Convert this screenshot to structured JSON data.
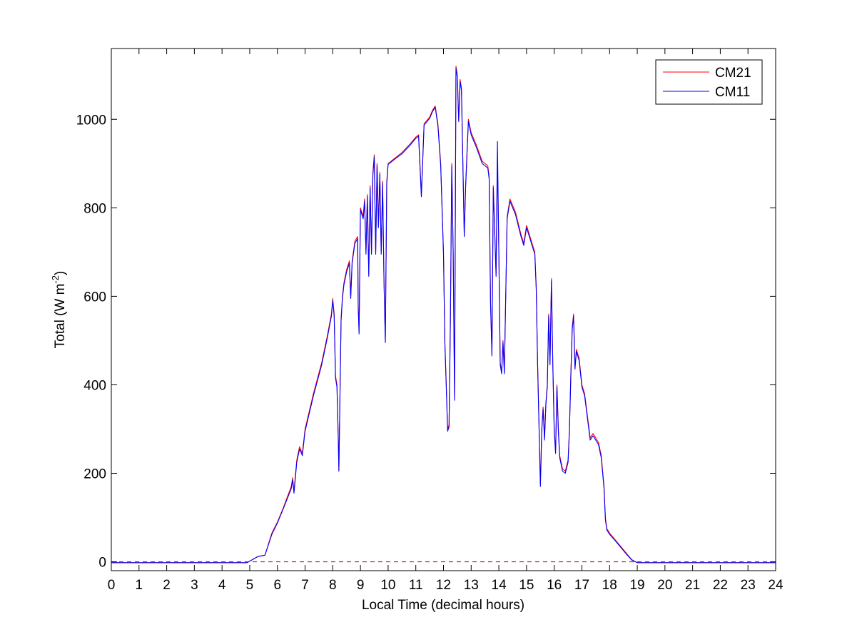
{
  "chart_data": {
    "type": "line",
    "xlabel": "Local Time (decimal hours)",
    "ylabel_main": "Total (W m",
    "ylabel_exponent": "-2",
    "ylabel_close": ")",
    "xlim": [
      0,
      24
    ],
    "ylim": [
      -20,
      1160
    ],
    "xticks": [
      0,
      1,
      2,
      3,
      4,
      5,
      6,
      7,
      8,
      9,
      10,
      11,
      12,
      13,
      14,
      15,
      16,
      17,
      18,
      19,
      20,
      21,
      22,
      23,
      24
    ],
    "yticks": [
      0,
      200,
      400,
      600,
      800,
      1000
    ],
    "xtick_labels": [
      "0",
      "1",
      "2",
      "3",
      "4",
      "5",
      "6",
      "7",
      "8",
      "9",
      "10",
      "11",
      "12",
      "13",
      "14",
      "15",
      "16",
      "17",
      "18",
      "19",
      "20",
      "21",
      "22",
      "23",
      "24"
    ],
    "ytick_labels": [
      "0",
      "200",
      "400",
      "600",
      "800",
      "1000"
    ],
    "grid": false,
    "legend_position": "top-right",
    "reference_line": {
      "y": 0,
      "style": "dashed",
      "color": "#a00000"
    },
    "series": [
      {
        "name": "CM21",
        "color": "#ff0000",
        "points": [
          [
            0,
            -2
          ],
          [
            4.9,
            -2
          ],
          [
            5.1,
            5
          ],
          [
            5.3,
            12
          ],
          [
            5.55,
            15
          ],
          [
            5.8,
            65
          ],
          [
            6.0,
            90
          ],
          [
            6.2,
            120
          ],
          [
            6.5,
            170
          ],
          [
            6.55,
            190
          ],
          [
            6.6,
            160
          ],
          [
            6.7,
            230
          ],
          [
            6.8,
            260
          ],
          [
            6.9,
            245
          ],
          [
            7.0,
            300
          ],
          [
            7.3,
            380
          ],
          [
            7.6,
            450
          ],
          [
            7.8,
            510
          ],
          [
            7.95,
            560
          ],
          [
            8.0,
            595
          ],
          [
            8.05,
            560
          ],
          [
            8.1,
            420
          ],
          [
            8.15,
            400
          ],
          [
            8.2,
            280
          ],
          [
            8.22,
            205
          ],
          [
            8.25,
            330
          ],
          [
            8.3,
            550
          ],
          [
            8.35,
            600
          ],
          [
            8.4,
            630
          ],
          [
            8.5,
            660
          ],
          [
            8.6,
            680
          ],
          [
            8.65,
            600
          ],
          [
            8.7,
            680
          ],
          [
            8.8,
            725
          ],
          [
            8.9,
            735
          ],
          [
            8.92,
            580
          ],
          [
            8.95,
            520
          ],
          [
            9.0,
            800
          ],
          [
            9.1,
            780
          ],
          [
            9.15,
            820
          ],
          [
            9.2,
            700
          ],
          [
            9.25,
            830
          ],
          [
            9.3,
            650
          ],
          [
            9.35,
            850
          ],
          [
            9.4,
            700
          ],
          [
            9.45,
            880
          ],
          [
            9.5,
            920
          ],
          [
            9.55,
            700
          ],
          [
            9.6,
            900
          ],
          [
            9.65,
            760
          ],
          [
            9.7,
            880
          ],
          [
            9.75,
            700
          ],
          [
            9.8,
            860
          ],
          [
            9.85,
            640
          ],
          [
            9.9,
            500
          ],
          [
            9.95,
            860
          ],
          [
            10.0,
            900
          ],
          [
            10.2,
            910
          ],
          [
            10.5,
            925
          ],
          [
            10.8,
            945
          ],
          [
            11.0,
            960
          ],
          [
            11.1,
            965
          ],
          [
            11.2,
            830
          ],
          [
            11.3,
            990
          ],
          [
            11.5,
            1005
          ],
          [
            11.6,
            1020
          ],
          [
            11.7,
            1030
          ],
          [
            11.8,
            990
          ],
          [
            11.9,
            900
          ],
          [
            12.0,
            700
          ],
          [
            12.05,
            500
          ],
          [
            12.1,
            400
          ],
          [
            12.15,
            300
          ],
          [
            12.2,
            310
          ],
          [
            12.25,
            550
          ],
          [
            12.3,
            900
          ],
          [
            12.35,
            700
          ],
          [
            12.4,
            370
          ],
          [
            12.45,
            1120
          ],
          [
            12.5,
            1100
          ],
          [
            12.55,
            1000
          ],
          [
            12.6,
            1090
          ],
          [
            12.65,
            1070
          ],
          [
            12.7,
            900
          ],
          [
            12.75,
            740
          ],
          [
            12.8,
            850
          ],
          [
            12.9,
            1000
          ],
          [
            13.0,
            970
          ],
          [
            13.2,
            940
          ],
          [
            13.4,
            905
          ],
          [
            13.6,
            895
          ],
          [
            13.65,
            870
          ],
          [
            13.7,
            590
          ],
          [
            13.75,
            470
          ],
          [
            13.8,
            850
          ],
          [
            13.9,
            650
          ],
          [
            13.95,
            900
          ],
          [
            14.0,
            700
          ],
          [
            14.05,
            450
          ],
          [
            14.1,
            430
          ],
          [
            14.15,
            500
          ],
          [
            14.2,
            430
          ],
          [
            14.3,
            780
          ],
          [
            14.4,
            820
          ],
          [
            14.6,
            790
          ],
          [
            14.8,
            740
          ],
          [
            14.9,
            720
          ],
          [
            15.0,
            760
          ],
          [
            15.1,
            740
          ],
          [
            15.2,
            720
          ],
          [
            15.3,
            700
          ],
          [
            15.35,
            620
          ],
          [
            15.4,
            450
          ],
          [
            15.5,
            175
          ],
          [
            15.55,
            300
          ],
          [
            15.6,
            350
          ],
          [
            15.65,
            280
          ],
          [
            15.7,
            360
          ],
          [
            15.75,
            400
          ],
          [
            15.8,
            560
          ],
          [
            15.85,
            450
          ],
          [
            15.9,
            640
          ],
          [
            15.95,
            450
          ],
          [
            16.0,
            300
          ],
          [
            16.05,
            250
          ],
          [
            16.1,
            400
          ],
          [
            16.15,
            300
          ],
          [
            16.2,
            240
          ],
          [
            16.3,
            210
          ],
          [
            16.4,
            205
          ],
          [
            16.5,
            230
          ],
          [
            16.55,
            300
          ],
          [
            16.6,
            420
          ],
          [
            16.65,
            530
          ],
          [
            16.7,
            560
          ],
          [
            16.75,
            440
          ],
          [
            16.8,
            480
          ],
          [
            16.9,
            460
          ],
          [
            17.0,
            400
          ],
          [
            17.1,
            380
          ],
          [
            17.2,
            330
          ],
          [
            17.3,
            280
          ],
          [
            17.4,
            290
          ],
          [
            17.5,
            280
          ],
          [
            17.6,
            270
          ],
          [
            17.7,
            240
          ],
          [
            17.8,
            170
          ],
          [
            17.85,
            100
          ],
          [
            17.9,
            75
          ],
          [
            18.0,
            65
          ],
          [
            18.2,
            50
          ],
          [
            18.4,
            35
          ],
          [
            18.6,
            20
          ],
          [
            18.8,
            5
          ],
          [
            19.0,
            -2
          ],
          [
            24.0,
            -2
          ]
        ]
      },
      {
        "name": "CM11",
        "color": "#0000ff",
        "points": [
          [
            0,
            -2
          ],
          [
            4.9,
            -2
          ],
          [
            5.1,
            5
          ],
          [
            5.3,
            12
          ],
          [
            5.55,
            15
          ],
          [
            5.8,
            62
          ],
          [
            6.0,
            88
          ],
          [
            6.2,
            118
          ],
          [
            6.5,
            165
          ],
          [
            6.55,
            185
          ],
          [
            6.6,
            155
          ],
          [
            6.7,
            225
          ],
          [
            6.8,
            255
          ],
          [
            6.9,
            240
          ],
          [
            7.0,
            295
          ],
          [
            7.3,
            375
          ],
          [
            7.6,
            445
          ],
          [
            7.8,
            505
          ],
          [
            7.95,
            555
          ],
          [
            8.0,
            590
          ],
          [
            8.05,
            555
          ],
          [
            8.1,
            415
          ],
          [
            8.15,
            395
          ],
          [
            8.2,
            275
          ],
          [
            8.22,
            205
          ],
          [
            8.25,
            325
          ],
          [
            8.3,
            545
          ],
          [
            8.35,
            595
          ],
          [
            8.4,
            625
          ],
          [
            8.5,
            655
          ],
          [
            8.6,
            675
          ],
          [
            8.65,
            595
          ],
          [
            8.7,
            675
          ],
          [
            8.8,
            720
          ],
          [
            8.9,
            730
          ],
          [
            8.92,
            575
          ],
          [
            8.95,
            515
          ],
          [
            9.0,
            795
          ],
          [
            9.1,
            775
          ],
          [
            9.15,
            815
          ],
          [
            9.2,
            695
          ],
          [
            9.25,
            825
          ],
          [
            9.3,
            645
          ],
          [
            9.35,
            845
          ],
          [
            9.4,
            695
          ],
          [
            9.45,
            875
          ],
          [
            9.5,
            915
          ],
          [
            9.55,
            695
          ],
          [
            9.6,
            895
          ],
          [
            9.65,
            755
          ],
          [
            9.7,
            875
          ],
          [
            9.75,
            695
          ],
          [
            9.8,
            855
          ],
          [
            9.85,
            635
          ],
          [
            9.9,
            495
          ],
          [
            9.95,
            855
          ],
          [
            10.0,
            898
          ],
          [
            10.2,
            908
          ],
          [
            10.5,
            922
          ],
          [
            10.8,
            942
          ],
          [
            11.0,
            957
          ],
          [
            11.1,
            962
          ],
          [
            11.2,
            825
          ],
          [
            11.3,
            987
          ],
          [
            11.5,
            1002
          ],
          [
            11.6,
            1017
          ],
          [
            11.7,
            1027
          ],
          [
            11.8,
            985
          ],
          [
            11.9,
            895
          ],
          [
            12.0,
            695
          ],
          [
            12.05,
            495
          ],
          [
            12.1,
            395
          ],
          [
            12.15,
            295
          ],
          [
            12.2,
            305
          ],
          [
            12.25,
            545
          ],
          [
            12.3,
            895
          ],
          [
            12.35,
            695
          ],
          [
            12.4,
            365
          ],
          [
            12.45,
            1115
          ],
          [
            12.5,
            1095
          ],
          [
            12.55,
            995
          ],
          [
            12.6,
            1085
          ],
          [
            12.65,
            1065
          ],
          [
            12.7,
            895
          ],
          [
            12.75,
            735
          ],
          [
            12.8,
            845
          ],
          [
            12.9,
            995
          ],
          [
            13.0,
            965
          ],
          [
            13.2,
            935
          ],
          [
            13.4,
            900
          ],
          [
            13.6,
            890
          ],
          [
            13.65,
            865
          ],
          [
            13.7,
            585
          ],
          [
            13.75,
            465
          ],
          [
            13.8,
            845
          ],
          [
            13.9,
            645
          ],
          [
            13.95,
            950
          ],
          [
            14.0,
            695
          ],
          [
            14.05,
            445
          ],
          [
            14.1,
            425
          ],
          [
            14.15,
            495
          ],
          [
            14.2,
            425
          ],
          [
            14.3,
            775
          ],
          [
            14.4,
            815
          ],
          [
            14.6,
            785
          ],
          [
            14.8,
            735
          ],
          [
            14.9,
            715
          ],
          [
            15.0,
            755
          ],
          [
            15.1,
            735
          ],
          [
            15.2,
            715
          ],
          [
            15.3,
            695
          ],
          [
            15.35,
            615
          ],
          [
            15.4,
            445
          ],
          [
            15.5,
            170
          ],
          [
            15.55,
            295
          ],
          [
            15.6,
            345
          ],
          [
            15.65,
            275
          ],
          [
            15.7,
            355
          ],
          [
            15.75,
            395
          ],
          [
            15.8,
            555
          ],
          [
            15.85,
            445
          ],
          [
            15.9,
            635
          ],
          [
            15.95,
            445
          ],
          [
            16.0,
            295
          ],
          [
            16.05,
            245
          ],
          [
            16.1,
            395
          ],
          [
            16.15,
            295
          ],
          [
            16.2,
            235
          ],
          [
            16.3,
            205
          ],
          [
            16.4,
            200
          ],
          [
            16.5,
            225
          ],
          [
            16.55,
            295
          ],
          [
            16.6,
            415
          ],
          [
            16.65,
            525
          ],
          [
            16.7,
            555
          ],
          [
            16.75,
            435
          ],
          [
            16.8,
            475
          ],
          [
            16.9,
            455
          ],
          [
            17.0,
            395
          ],
          [
            17.1,
            375
          ],
          [
            17.2,
            325
          ],
          [
            17.3,
            275
          ],
          [
            17.4,
            285
          ],
          [
            17.5,
            275
          ],
          [
            17.6,
            265
          ],
          [
            17.7,
            235
          ],
          [
            17.8,
            165
          ],
          [
            17.85,
            95
          ],
          [
            17.9,
            72
          ],
          [
            18.0,
            62
          ],
          [
            18.2,
            48
          ],
          [
            18.4,
            33
          ],
          [
            18.6,
            18
          ],
          [
            18.8,
            4
          ],
          [
            19.0,
            -2
          ],
          [
            24.0,
            -2
          ]
        ]
      }
    ]
  }
}
